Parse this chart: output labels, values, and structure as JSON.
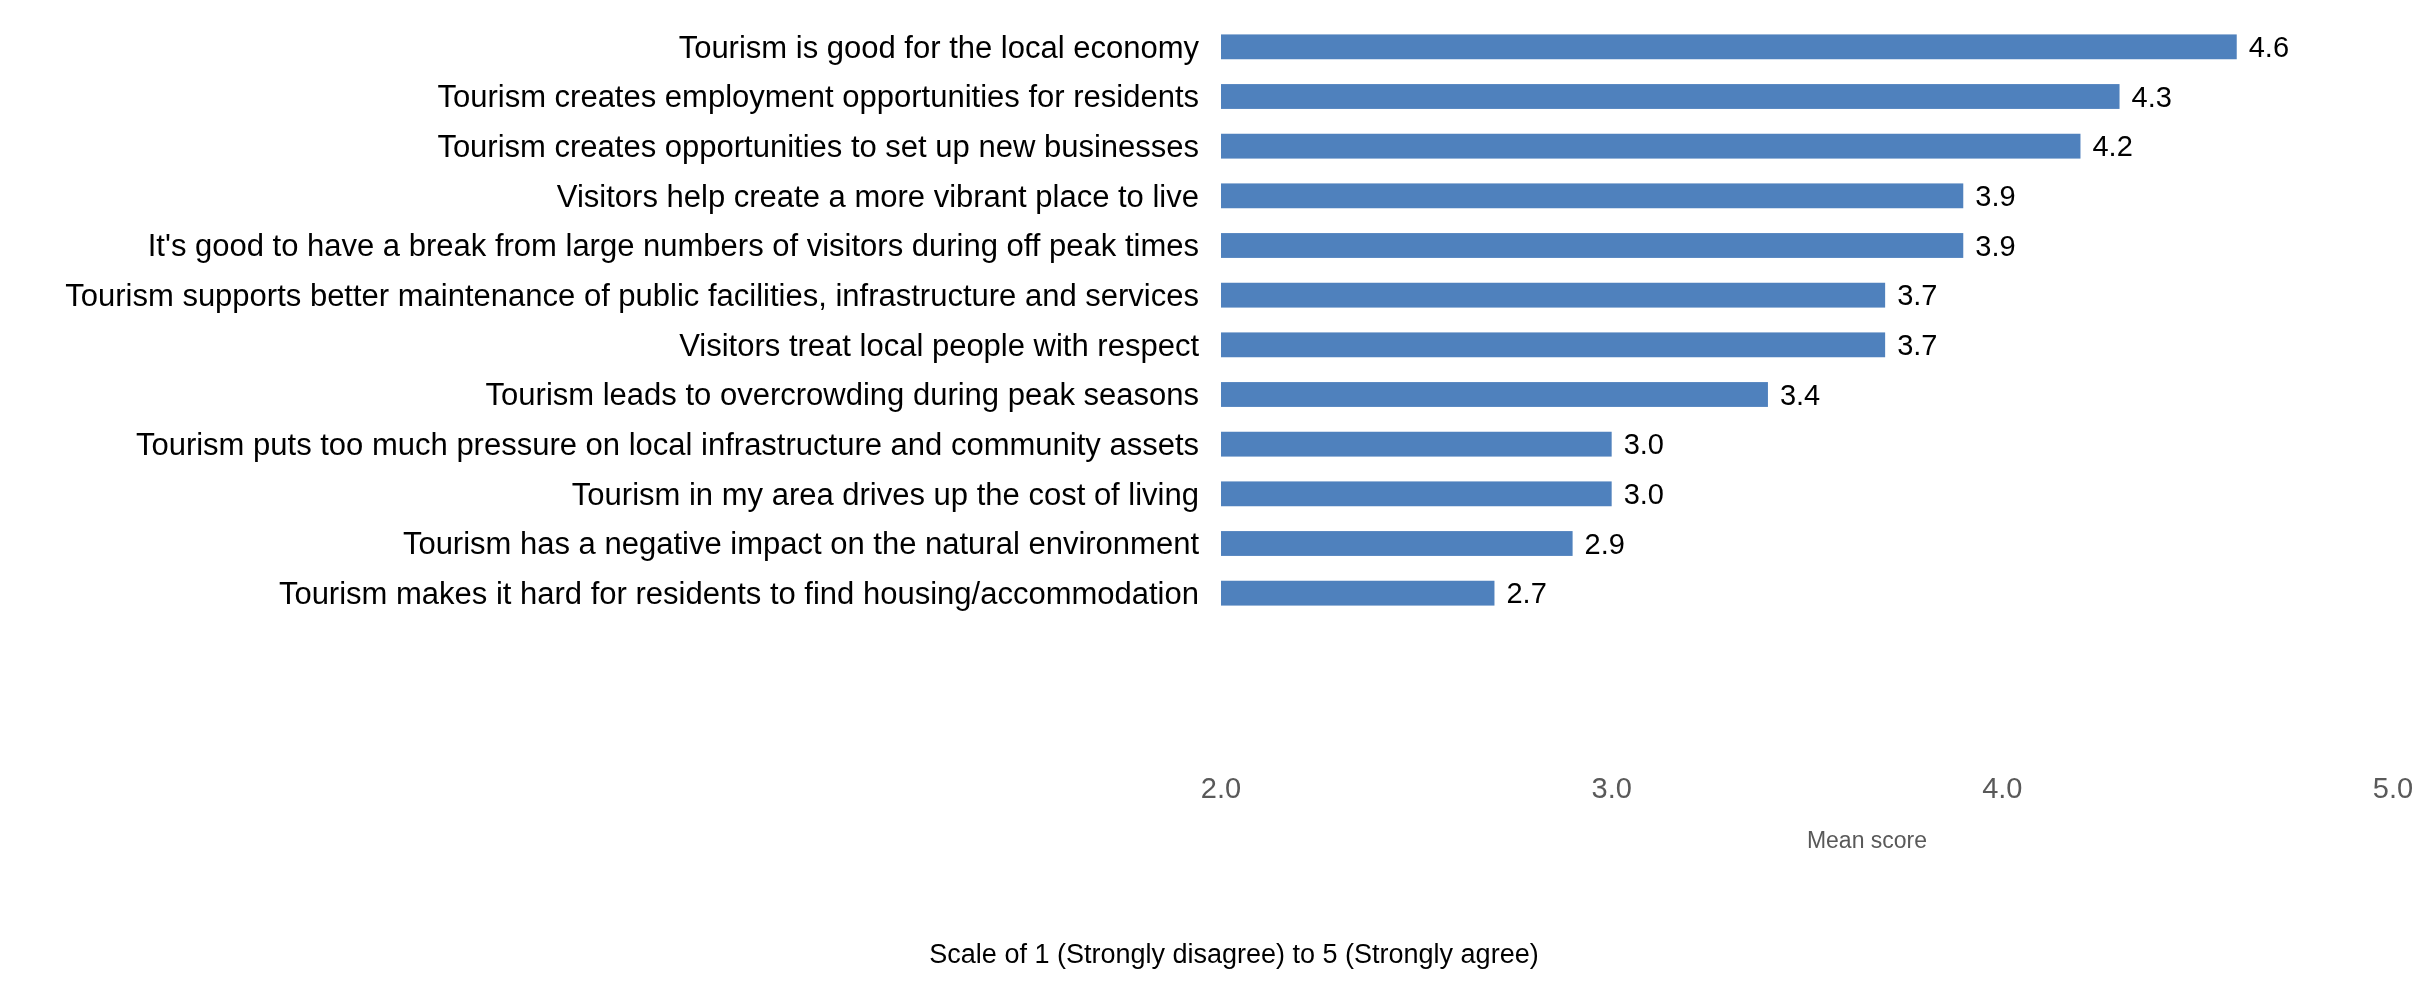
{
  "chart_data": {
    "type": "bar",
    "orientation": "horizontal",
    "categories": [
      "Tourism is good for the local economy",
      "Tourism creates employment opportunities for residents",
      "Tourism creates opportunities to set up new businesses",
      "Visitors help create a more vibrant place to live",
      "It's good to have a break from large numbers of visitors during off peak times",
      "Tourism supports better maintenance of public facilities, infrastructure and services",
      "Visitors treat local people with respect",
      "Tourism leads to overcrowding during peak seasons",
      "Tourism puts too much pressure on local infrastructure and community assets",
      "Tourism in my area drives up the cost of living",
      "Tourism has a negative impact on the natural environment",
      "Tourism makes it hard for residents to find housing/accommodation"
    ],
    "values": [
      4.6,
      4.3,
      4.2,
      3.9,
      3.9,
      3.7,
      3.7,
      3.4,
      3.0,
      3.0,
      2.9,
      2.7
    ],
    "value_labels": [
      "4.6",
      "4.3",
      "4.2",
      "3.9",
      "3.9",
      "3.7",
      "3.7",
      "3.4",
      "3.0",
      "3.0",
      "2.9",
      "2.7"
    ],
    "color": "#4f81bd",
    "xlim": [
      2,
      5
    ],
    "xticks": [
      {
        "value": 2,
        "label": "2.0"
      },
      {
        "value": 3,
        "label": "3.0"
      },
      {
        "value": 4,
        "label": "4.0"
      },
      {
        "value": 5,
        "label": "5.0"
      }
    ],
    "xlabel": "Mean score",
    "annotations": [
      "Scale of 1 (Strongly disagree) to 5 (Strongly agree)"
    ],
    "grid": false
  }
}
